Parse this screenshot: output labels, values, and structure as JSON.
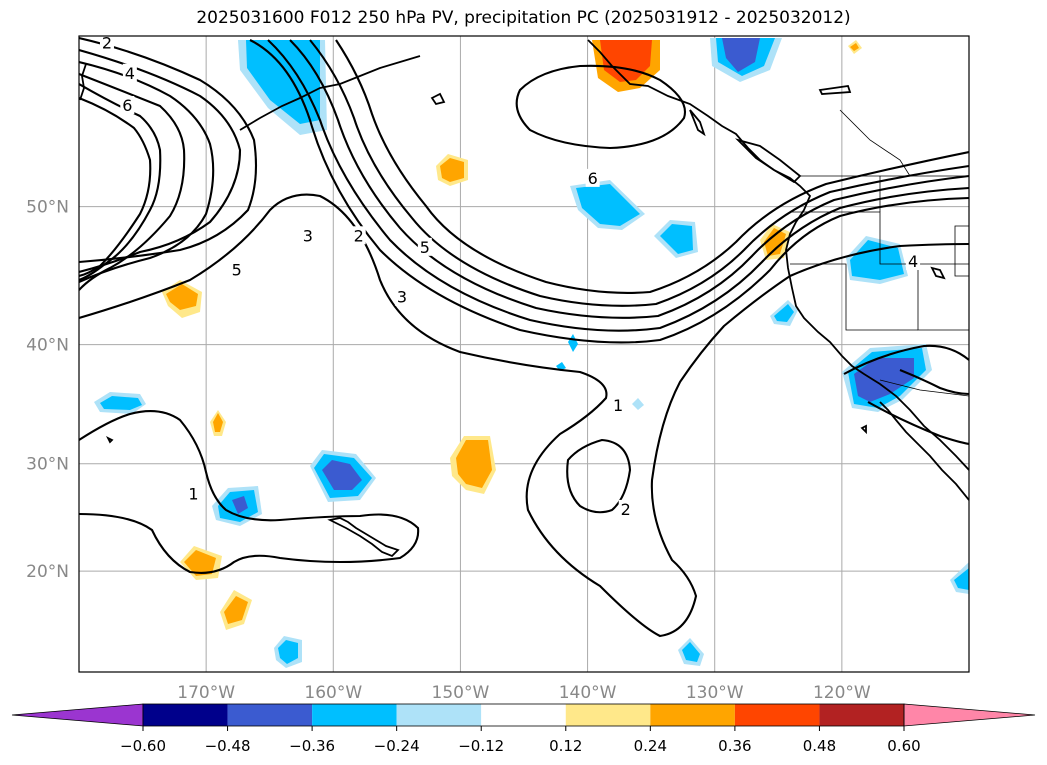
{
  "title": "2025031600 F012 250 hPa PV, precipitation PC (2025031912 - 2025032012)",
  "chart_data": {
    "type": "contour-map",
    "title": "2025031600 F012 250 hPa PV, precipitation PC (2025031912 - 2025032012)",
    "map_extent": {
      "lon": [
        -180,
        -110
      ],
      "lat": [
        10,
        60
      ]
    },
    "grid": true,
    "lon_ticks": [
      {
        "lon": -170,
        "label": "170°W"
      },
      {
        "lon": -160,
        "label": "160°W"
      },
      {
        "lon": -150,
        "label": "150°W"
      },
      {
        "lon": -140,
        "label": "140°W"
      },
      {
        "lon": -130,
        "label": "130°W"
      },
      {
        "lon": -120,
        "label": "120°W"
      }
    ],
    "lat_ticks": [
      {
        "lat": 20,
        "label": "20°N"
      },
      {
        "lat": 30,
        "label": "30°N"
      },
      {
        "lat": 40,
        "label": "40°N"
      },
      {
        "lat": 50,
        "label": "50°N"
      }
    ],
    "contour_labels": [
      {
        "text": "2",
        "lon": -177.8,
        "lat": 59.6
      },
      {
        "text": "4",
        "lon": -176.0,
        "lat": 58.0
      },
      {
        "text": "6",
        "lon": -176.2,
        "lat": 56.2
      },
      {
        "text": "5",
        "lon": -167.6,
        "lat": 45.6
      },
      {
        "text": "3",
        "lon": -162.0,
        "lat": 48.0
      },
      {
        "text": "2",
        "lon": -158.0,
        "lat": 48.0
      },
      {
        "text": "3",
        "lon": -154.6,
        "lat": 43.6
      },
      {
        "text": "5",
        "lon": -152.8,
        "lat": 47.2
      },
      {
        "text": "6",
        "lon": -139.6,
        "lat": 51.8
      },
      {
        "text": "4",
        "lon": -114.4,
        "lat": 46.2
      },
      {
        "text": "1",
        "lon": -137.6,
        "lat": 35.0
      },
      {
        "text": "1",
        "lon": -171.0,
        "lat": 27.2
      },
      {
        "text": "2",
        "lon": -137.0,
        "lat": 25.8
      }
    ],
    "colorbar": {
      "levels": [
        -0.6,
        -0.48,
        -0.36,
        -0.24,
        -0.12,
        0.12,
        0.24,
        0.36,
        0.48,
        0.6
      ],
      "tick_labels": [
        "−0.60",
        "−0.48",
        "−0.36",
        "−0.24",
        "−0.12",
        "0.12",
        "0.24",
        "0.36",
        "0.48",
        "0.60"
      ],
      "colors": [
        "#9b35d0",
        "#00008b",
        "#3b5bd0",
        "#00bfff",
        "#aee2f8",
        "#ffffff",
        "#ffe88a",
        "#ffa500",
        "#ff4500",
        "#b22222",
        "#ff86a8"
      ]
    }
  }
}
